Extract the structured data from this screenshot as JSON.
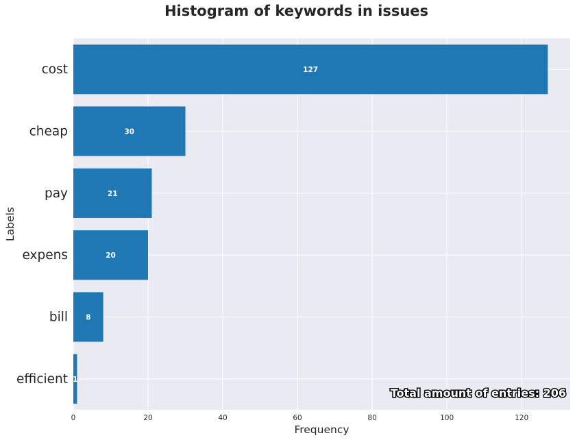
{
  "chart_data": {
    "type": "bar",
    "orientation": "horizontal",
    "title": "Histogram of keywords in issues",
    "xlabel": "Frequency",
    "ylabel": "Labels",
    "categories": [
      "cost",
      "cheap",
      "pay",
      "expens",
      "bill",
      "efficient"
    ],
    "values": [
      127,
      30,
      21,
      20,
      8,
      1
    ],
    "xlim": [
      0,
      133
    ],
    "xticks": [
      0,
      20,
      40,
      60,
      80,
      100,
      120
    ],
    "grid": true,
    "annotation": "Total amount of entries: 206",
    "colors": {
      "bar": "#1f77b4",
      "plot_background": "#eaeaf2",
      "grid": "#ffffff"
    }
  }
}
